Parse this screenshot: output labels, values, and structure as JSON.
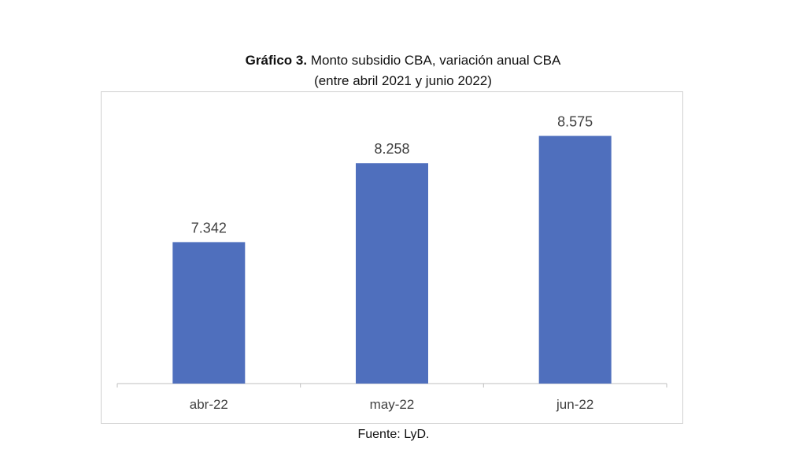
{
  "title": {
    "prefix": "Gráfico 3.",
    "main": "Monto subsidio CBA, variación anual CBA",
    "subtitle": "(entre abril 2021 y junio 2022)"
  },
  "source": "Fuente: LyD.",
  "chart_data": {
    "type": "bar",
    "categories": [
      "abr-22",
      "may-22",
      "jun-22"
    ],
    "values": [
      7.342,
      8.258,
      8.575
    ],
    "value_labels": [
      "7.342",
      "8.258",
      "8.575"
    ],
    "xlabel": "",
    "ylabel": "",
    "ylim": [
      5.7,
      8.9
    ],
    "grid": false,
    "legend": "none",
    "bar_color": "#4f6fbd",
    "axis_color": "#bfbfbf",
    "label_color": "#404040"
  }
}
